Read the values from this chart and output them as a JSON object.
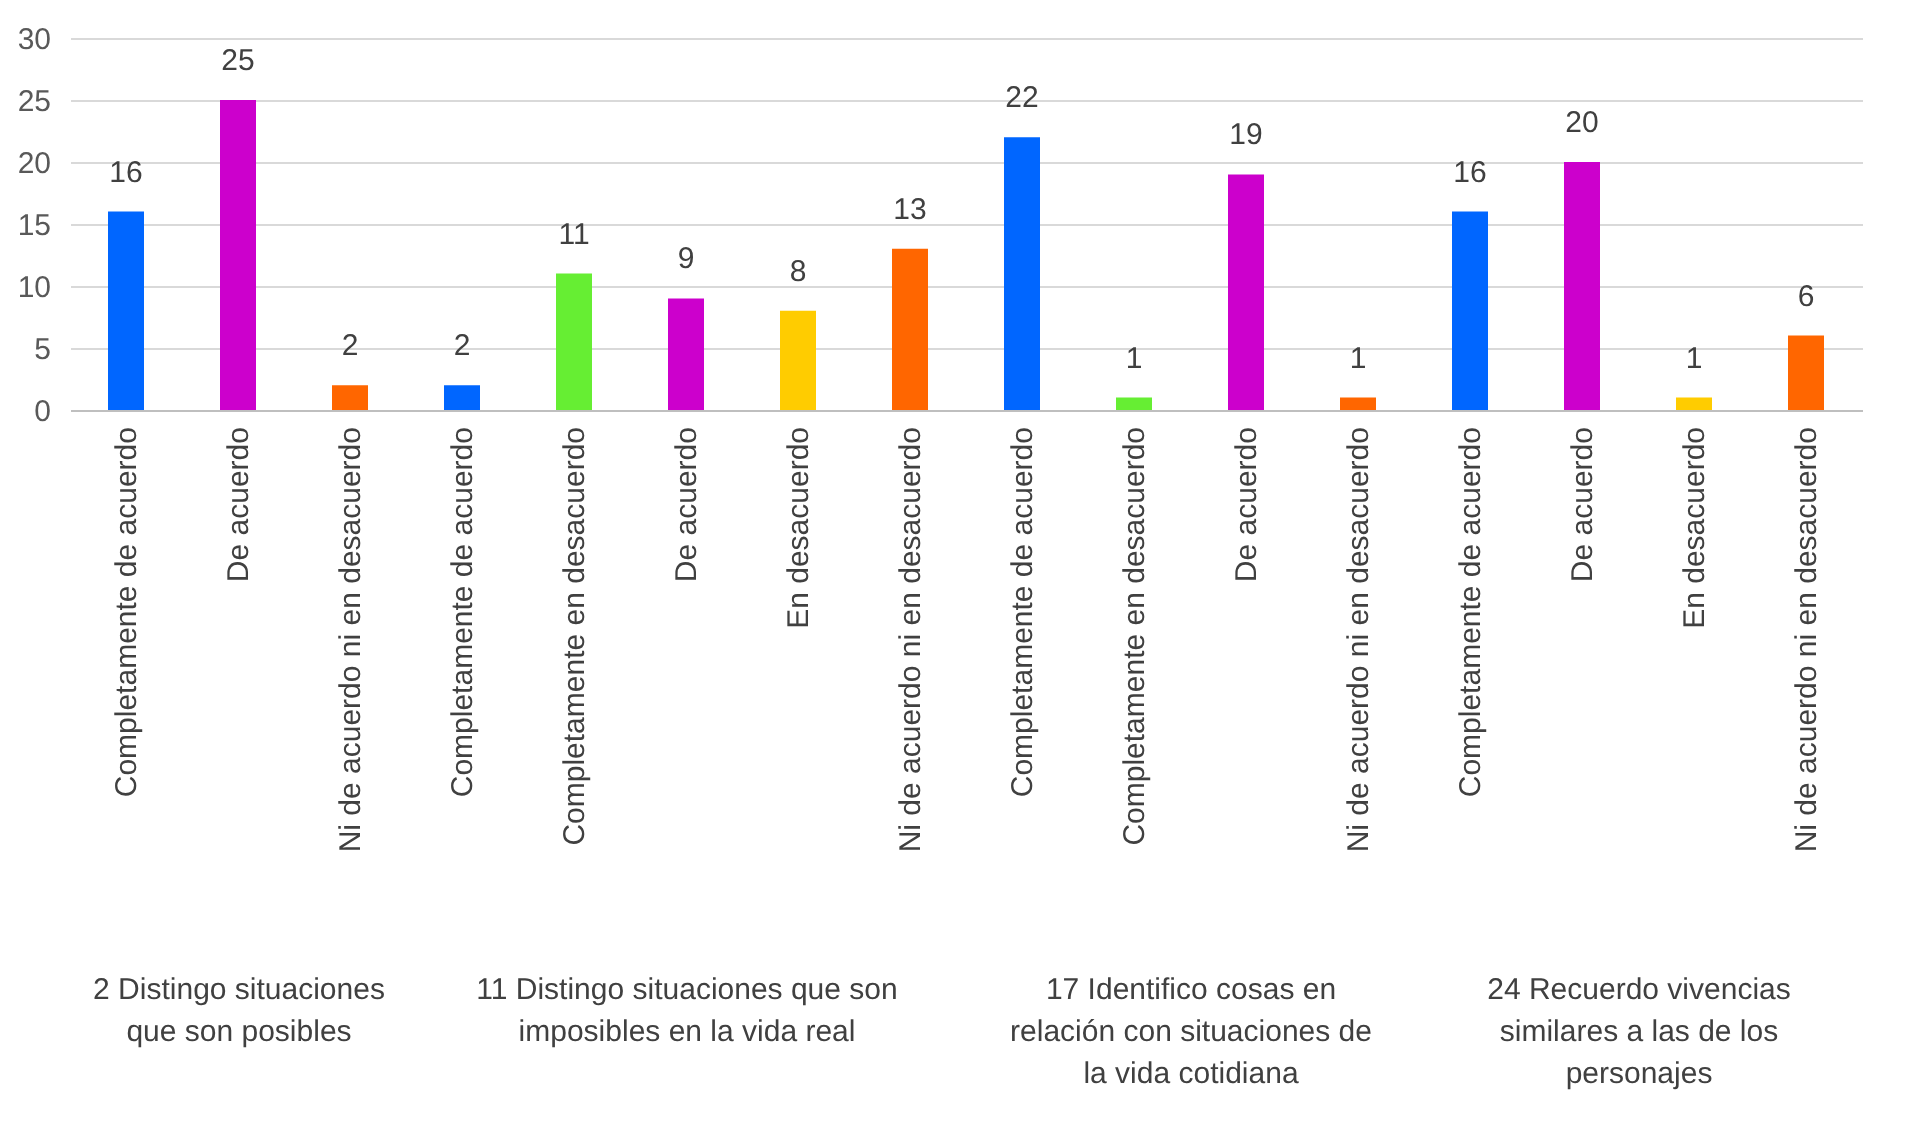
{
  "chart_data": [
    {
      "type": "bar",
      "xlabel": "2 Distingo situaciones que son posibles",
      "categories": [
        "Completamente de acuerdo",
        "De acuerdo",
        "Ni de acuerdo ni en desacuerdo"
      ],
      "values": [
        16,
        25,
        2
      ],
      "colors": [
        "#0066ff",
        "#cc00cc",
        "#ff6600"
      ],
      "ylim": [
        0,
        30
      ],
      "yticks": [
        0,
        5,
        10,
        15,
        20,
        25,
        30
      ],
      "grid": "y",
      "data_labels": true
    },
    {
      "type": "bar",
      "xlabel": "11 Distingo situaciones que son imposibles en la vida real",
      "categories": [
        "Completamente de acuerdo",
        "Completamente en desacuerdo",
        "De acuerdo",
        "En desacuerdo",
        "Ni de acuerdo ni en desacuerdo"
      ],
      "values": [
        2,
        11,
        9,
        8,
        13
      ],
      "colors": [
        "#0066ff",
        "#66ee33",
        "#cc00cc",
        "#ffcc00",
        "#ff6600"
      ],
      "ylim": [
        0,
        30
      ],
      "yticks": [
        0,
        5,
        10,
        15,
        20,
        25,
        30
      ],
      "grid": "y",
      "data_labels": true,
      "tick_labels": "x"
    },
    {
      "type": "bar",
      "xlabel": "17 Identifico cosas en relación con situaciones de la vida cotidiana",
      "categories": [
        "Completamente de acuerdo",
        "Completamente en desacuerdo",
        "De acuerdo",
        "Ni de acuerdo ni en desacuerdo"
      ],
      "values": [
        22,
        1,
        19,
        1
      ],
      "colors": [
        "#0066ff",
        "#66ee33",
        "#cc00cc",
        "#ff6600"
      ],
      "ylim": [
        0,
        30
      ],
      "yticks": [
        0,
        5,
        10,
        15,
        20,
        25,
        30
      ],
      "grid": "y",
      "data_labels": true,
      "tick_labels": "x"
    },
    {
      "type": "bar",
      "xlabel": "24 Recuerdo vivencias similares a las de los personajes",
      "categories": [
        "Completamente de acuerdo",
        "De acuerdo",
        "En desacuerdo",
        "Ni de acuerdo ni en desacuerdo"
      ],
      "values": [
        16,
        20,
        1,
        6
      ],
      "colors": [
        "#0066ff",
        "#cc00cc",
        "#ffcc00",
        "#ff6600"
      ],
      "ylim": [
        0,
        30
      ],
      "yticks": [
        0,
        5,
        10,
        15,
        20,
        25,
        30
      ],
      "grid": "y",
      "data_labels": true,
      "tick_labels": "x"
    }
  ]
}
